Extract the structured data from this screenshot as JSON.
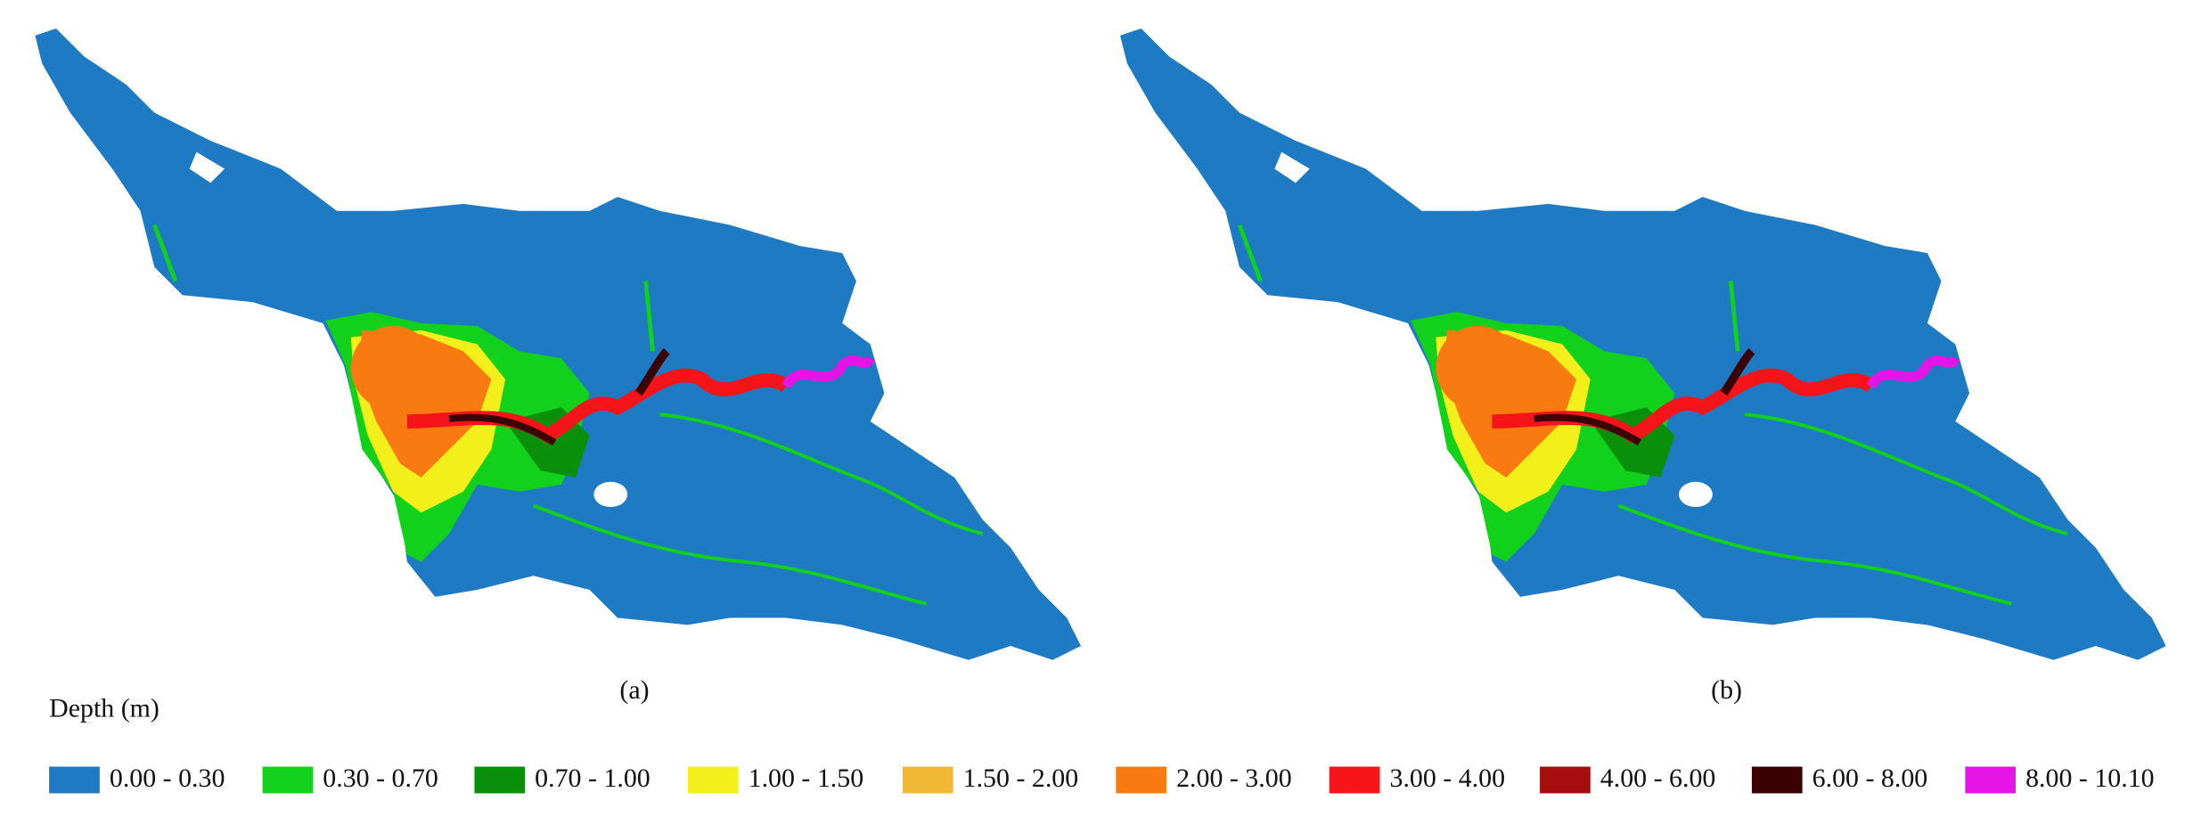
{
  "panels": [
    {
      "label": "(a)"
    },
    {
      "label": "(b)"
    }
  ],
  "legend": {
    "title": "Depth (m)",
    "items": [
      {
        "label": "0.00 - 0.30",
        "color": "#1f7ac4"
      },
      {
        "label": "0.30 - 0.70",
        "color": "#11d11a"
      },
      {
        "label": "0.70 - 1.00",
        "color": "#0a8f0a"
      },
      {
        "label": "1.00 - 1.50",
        "color": "#f3ef1a"
      },
      {
        "label": "1.50 - 2.00",
        "color": "#f0b735"
      },
      {
        "label": "2.00 - 3.00",
        "color": "#f97a10"
      },
      {
        "label": "3.00 - 4.00",
        "color": "#f5141a"
      },
      {
        "label": "4.00 - 6.00",
        "color": "#a60d0f"
      },
      {
        "label": "6.00 - 8.00",
        "color": "#3b0000"
      },
      {
        "label": "8.00 - 10.10",
        "color": "#e614e6"
      }
    ]
  }
}
